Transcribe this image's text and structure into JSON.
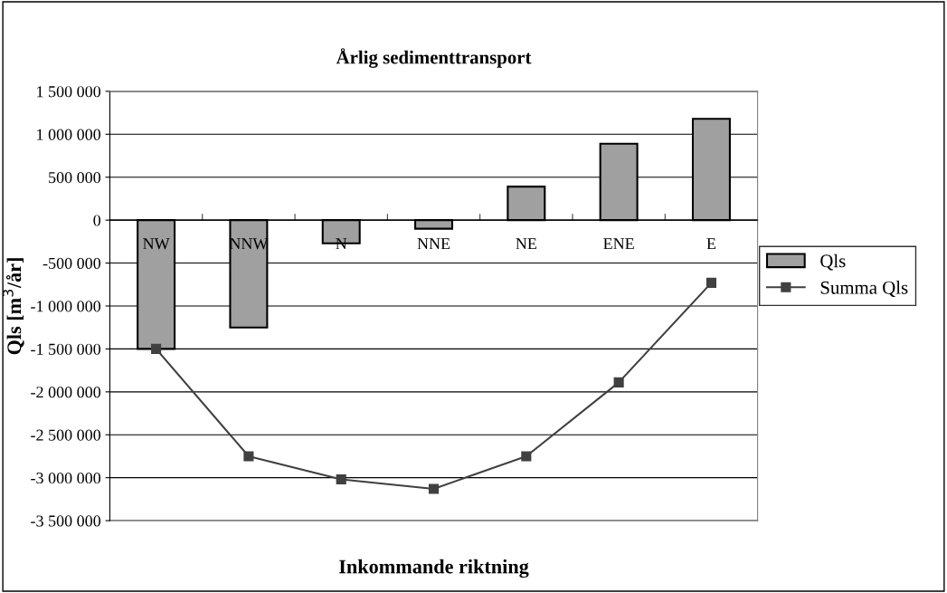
{
  "chart_data": {
    "type": "bar",
    "title": "Årlig sedimenttransport",
    "xlabel": "Inkommande riktning",
    "ylabel": "Qls [m$^{3}$/år]",
    "categories": [
      "NW",
      "NNW",
      "N",
      "NNE",
      "NE",
      "ENE",
      "E"
    ],
    "series": [
      {
        "name": "Qls",
        "color": "#a0a0a0",
        "values": [
          -1500000,
          -1250000,
          -270000,
          -100000,
          390000,
          890000,
          1180000
        ]
      },
      {
        "name": "Summa Qls",
        "type": "line",
        "color": "#404040",
        "marker": "square",
        "line_style": "solid",
        "values": [
          -1500000,
          -2750000,
          -3020000,
          -3130000,
          -2750000,
          -1890000,
          -730000
        ]
      }
    ],
    "ylim": [
      -3500000,
      1500000
    ],
    "yticks": [
      {
        "value": -3500000,
        "label": "-3 500 000"
      },
      {
        "value": -3000000,
        "label": "-3 000 000"
      },
      {
        "value": -2500000,
        "label": "-2 500 000"
      },
      {
        "value": -2000000,
        "label": "-2 000 000"
      },
      {
        "value": -1500000,
        "label": "-1 500 000"
      },
      {
        "value": -1000000,
        "label": "-1 000 000"
      },
      {
        "value": -500000,
        "label": "-500 000"
      },
      0,
      {
        "value": 500000,
        "label": "500 000"
      },
      {
        "value": 1000000,
        "label": "1 000 000"
      },
      {
        "value": 1500000,
        "label": "1 500 000"
      }
    ],
    "grid": "y",
    "legend": "right"
  }
}
